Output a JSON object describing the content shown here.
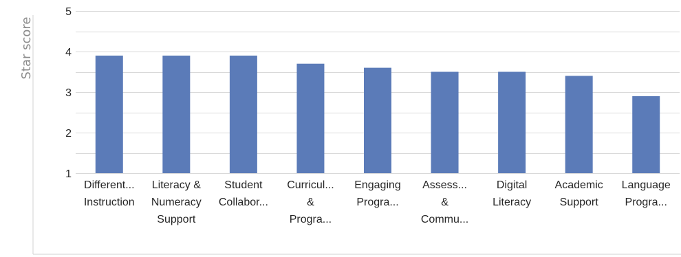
{
  "chart_data": {
    "type": "bar",
    "ylabel": "Star score",
    "xlabel": "",
    "ylim": [
      1,
      5
    ],
    "yticks": [
      1,
      2,
      3,
      4,
      5
    ],
    "grid": true,
    "bar_color": "#5b7bb8",
    "categories": [
      [
        "Different...",
        "Instruction"
      ],
      [
        "Literacy &",
        "Numeracy",
        "Support"
      ],
      [
        "Student",
        "Collabor..."
      ],
      [
        "Curricul...",
        "&",
        "Progra..."
      ],
      [
        "Engaging",
        "Progra..."
      ],
      [
        "Assess...",
        "&",
        "Commu..."
      ],
      [
        "Digital",
        "Literacy"
      ],
      [
        "Academic",
        "Support"
      ],
      [
        "Language",
        "Progra..."
      ]
    ],
    "values": [
      3.9,
      3.9,
      3.9,
      3.7,
      3.6,
      3.5,
      3.5,
      3.4,
      2.9
    ]
  }
}
